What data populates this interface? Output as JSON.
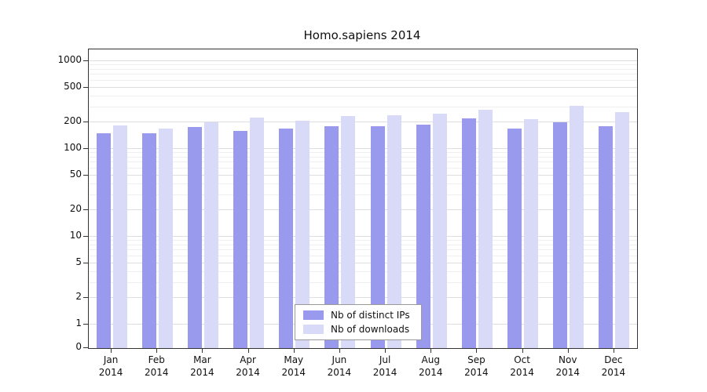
{
  "chart_data": {
    "type": "bar",
    "title": "Homo.sapiens 2014",
    "categories": [
      "Jan",
      "Feb",
      "Mar",
      "Apr",
      "May",
      "Jun",
      "Jul",
      "Aug",
      "Sep",
      "Oct",
      "Nov",
      "Dec"
    ],
    "category_year": "2014",
    "series": [
      {
        "name": "Nb of distinct IPs",
        "color": "#9999ee",
        "values": [
          150,
          150,
          178,
          162,
          172,
          180,
          183,
          190,
          222,
          172,
          200,
          182
        ]
      },
      {
        "name": "Nb of downloads",
        "color": "#d9d9f8",
        "values": [
          185,
          170,
          200,
          228,
          210,
          235,
          240,
          252,
          278,
          218,
          308,
          262
        ]
      }
    ],
    "y_ticks": [
      0,
      1,
      2,
      5,
      10,
      20,
      50,
      100,
      200,
      500,
      1000
    ],
    "y_minor_ticks": [
      3,
      4,
      6,
      7,
      8,
      9,
      30,
      40,
      60,
      70,
      80,
      90,
      300,
      400,
      600,
      700,
      800,
      900
    ],
    "y_scale": "log",
    "ylim": [
      0,
      1500
    ],
    "grid": true,
    "legend_position": "bottom-center"
  }
}
